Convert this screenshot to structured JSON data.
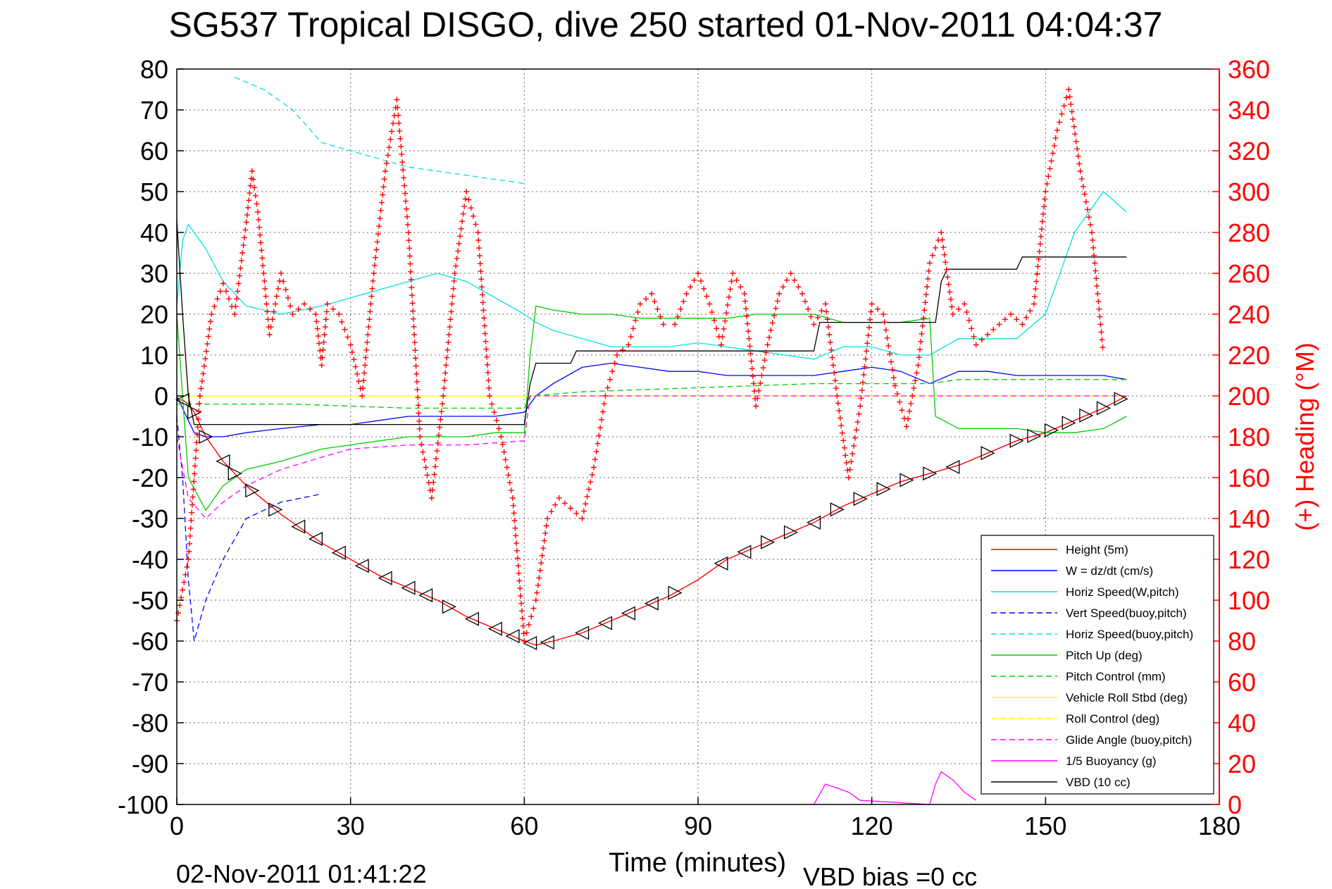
{
  "chart_data": {
    "type": "line",
    "title": "SG537 Tropical DISGO, dive 250 started 01-Nov-2011 04:04:37",
    "xlabel": "Time (minutes)",
    "ylabel": "",
    "y2label": "(+) Heading (°M)",
    "xlim": [
      0,
      180
    ],
    "ylim": [
      -100,
      80
    ],
    "y2lim": [
      0,
      360
    ],
    "x_ticks": [
      "0",
      "30",
      "60",
      "90",
      "120",
      "150",
      "180"
    ],
    "x_tick_values": [
      0,
      30,
      60,
      90,
      120,
      150,
      180
    ],
    "y_ticks": [
      "80",
      "70",
      "60",
      "50",
      "40",
      "30",
      "20",
      "10",
      "0",
      "-10",
      "-20",
      "-30",
      "-40",
      "-50",
      "-60",
      "-70",
      "-80",
      "-90",
      "-100"
    ],
    "y_tick_values": [
      80,
      70,
      60,
      50,
      40,
      30,
      20,
      10,
      0,
      -10,
      -20,
      -30,
      -40,
      -50,
      -60,
      -70,
      -80,
      -90,
      -100
    ],
    "y2_ticks": [
      "360",
      "340",
      "320",
      "300",
      "280",
      "260",
      "240",
      "220",
      "200",
      "180",
      "160",
      "140",
      "120",
      "100",
      "80",
      "60",
      "40",
      "20",
      "0"
    ],
    "y2_tick_values": [
      360,
      340,
      320,
      300,
      280,
      260,
      240,
      220,
      200,
      180,
      160,
      140,
      120,
      100,
      80,
      60,
      40,
      20,
      0
    ],
    "grid": true,
    "legend_position": "bottom-right",
    "footer_left": "02-Nov-2011 01:41:22",
    "footer_right": "VBD bias =0 cc",
    "series": [
      {
        "name": "Height (5m)",
        "color": "#ff0000",
        "style": "solid",
        "x": [
          0,
          1,
          2,
          3,
          5,
          8,
          12,
          18,
          25,
          30,
          35,
          40,
          45,
          50,
          55,
          60,
          62,
          65,
          70,
          75,
          80,
          85,
          90,
          95,
          100,
          105,
          110,
          115,
          120,
          125,
          130,
          135,
          140,
          145,
          150,
          155,
          160,
          164
        ],
        "y": [
          -1,
          -1,
          -2,
          -4,
          -10,
          -16,
          -22,
          -29,
          -36,
          -40,
          -44,
          -47,
          -50,
          -54,
          -57,
          -60,
          -61,
          -60,
          -58,
          -55,
          -52,
          -49,
          -45,
          -40,
          -37,
          -34,
          -31,
          -27,
          -24,
          -21,
          -19,
          -17,
          -14,
          -11,
          -9,
          -6,
          -3,
          0
        ]
      },
      {
        "name": "W = dz/dt (cm/s)",
        "color": "#0000ff",
        "style": "solid",
        "x": [
          0,
          1,
          2,
          3,
          5,
          8,
          12,
          18,
          25,
          30,
          35,
          40,
          45,
          50,
          55,
          60,
          62,
          65,
          70,
          75,
          80,
          85,
          90,
          95,
          100,
          105,
          110,
          115,
          120,
          125,
          130,
          135,
          140,
          145,
          150,
          155,
          160,
          164
        ],
        "y": [
          0,
          -3,
          -6,
          -9,
          -10,
          -10,
          -9,
          -8,
          -7,
          -7,
          -6,
          -5,
          -5,
          -5,
          -5,
          -4,
          0,
          3,
          7,
          8,
          7,
          6,
          6,
          5,
          5,
          5,
          5,
          6,
          7,
          6,
          3,
          6,
          6,
          5,
          5,
          5,
          5,
          4
        ]
      },
      {
        "name": "Horiz Speed(W,pitch)",
        "color": "#00e0e0",
        "style": "solid",
        "x": [
          0,
          1,
          2,
          5,
          8,
          12,
          18,
          25,
          30,
          35,
          40,
          45,
          50,
          55,
          60,
          62,
          65,
          70,
          75,
          80,
          85,
          90,
          95,
          100,
          105,
          110,
          115,
          120,
          125,
          130,
          135,
          140,
          145,
          150,
          155,
          160,
          164
        ],
        "y": [
          22,
          38,
          42,
          36,
          28,
          22,
          20,
          22,
          24,
          26,
          28,
          30,
          28,
          24,
          20,
          18,
          16,
          14,
          12,
          12,
          12,
          13,
          12,
          11,
          10,
          9,
          12,
          12,
          10,
          10,
          14,
          14,
          14,
          20,
          40,
          50,
          45
        ]
      },
      {
        "name": "Vert Speed(buoy,pitch)",
        "color": "#0000ff",
        "style": "dashed",
        "x": [
          0,
          1,
          2,
          3,
          5,
          8,
          12,
          18,
          25
        ],
        "y": [
          -5,
          -20,
          -45,
          -60,
          -50,
          -40,
          -30,
          -26,
          -24
        ]
      },
      {
        "name": "Horiz Speed(buoy,pitch)",
        "color": "#00e0e0",
        "style": "dashed",
        "x": [
          10,
          15,
          20,
          25,
          30,
          35,
          40,
          45,
          50,
          55,
          60
        ],
        "y": [
          78,
          75,
          70,
          62,
          60,
          58,
          56,
          55,
          54,
          53,
          52
        ]
      },
      {
        "name": "Pitch Up (deg)",
        "color": "#00cc00",
        "style": "solid",
        "x": [
          0,
          2,
          5,
          8,
          12,
          18,
          25,
          30,
          35,
          40,
          45,
          50,
          55,
          60,
          61,
          62,
          65,
          70,
          75,
          80,
          85,
          90,
          95,
          100,
          105,
          110,
          115,
          120,
          125,
          130,
          131,
          135,
          140,
          145,
          150,
          155,
          160,
          164
        ],
        "y": [
          20,
          -20,
          -28,
          -22,
          -18,
          -16,
          -13,
          -12,
          -11,
          -10,
          -10,
          -10,
          -9,
          -9,
          10,
          22,
          21,
          20,
          20,
          19,
          19,
          19,
          19,
          20,
          20,
          20,
          18,
          18,
          18,
          19,
          -5,
          -8,
          -8,
          -8,
          -9,
          -9,
          -8,
          -5
        ]
      },
      {
        "name": "Pitch Control (mm)",
        "color": "#00cc00",
        "style": "dashed",
        "x": [
          0,
          2,
          20,
          40,
          60,
          61,
          70,
          90,
          110,
          130,
          135,
          164
        ],
        "y": [
          -2,
          -2,
          -2,
          -3,
          -3,
          0,
          1,
          2,
          3,
          3,
          4,
          4
        ]
      },
      {
        "name": "Vehicle Roll Stbd (deg)",
        "color": "#ffff00",
        "style": "solid",
        "x": [
          0,
          5,
          10,
          20,
          30,
          40,
          50,
          60,
          70,
          80,
          90,
          100,
          110,
          120,
          130,
          140,
          150,
          160,
          164
        ],
        "y": [
          0,
          0,
          0,
          0,
          0,
          0,
          0,
          0,
          0,
          0,
          0,
          0,
          0,
          0,
          0,
          0,
          0,
          0,
          0
        ]
      },
      {
        "name": "Roll Control (deg)",
        "color": "#ffff00",
        "style": "dashed",
        "x": [
          0,
          20,
          40,
          60,
          80,
          100,
          120,
          140,
          164
        ],
        "y": [
          0,
          0,
          0,
          0,
          0,
          0,
          0,
          0,
          0
        ]
      },
      {
        "name": "Glide Angle (buoy,pitch)",
        "color": "#ff00ff",
        "style": "dashed",
        "x": [
          0,
          2,
          5,
          8,
          12,
          18,
          25,
          30,
          40,
          50,
          60,
          61,
          70,
          90,
          110,
          130,
          164
        ],
        "y": [
          -10,
          -25,
          -30,
          -26,
          -22,
          -18,
          -15,
          -13,
          -12,
          -12,
          -11,
          0,
          0,
          0,
          0,
          0,
          0
        ]
      },
      {
        "name": "1/5 Buoyancy (g)",
        "color": "#ff00ff",
        "style": "solid",
        "x": [
          110,
          112,
          114,
          116,
          118,
          130,
          131,
          132,
          134,
          136,
          138
        ],
        "y": [
          -100,
          -95,
          -96,
          -97,
          -99,
          -100,
          -95,
          -92,
          -94,
          -97,
          -99
        ]
      },
      {
        "name": "VBD (10 cc)",
        "color": "#000000",
        "style": "solid",
        "x": [
          0,
          1,
          2,
          3,
          60,
          61,
          62,
          68,
          69,
          110,
          111,
          131,
          132,
          133,
          145,
          146,
          164
        ],
        "y": [
          43,
          20,
          0,
          -7,
          -7,
          3,
          8,
          8,
          11,
          11,
          18,
          18,
          28,
          31,
          31,
          34,
          34
        ]
      }
    ],
    "heading": {
      "name": "(+) Heading",
      "color": "#ff0000",
      "marker": "+",
      "x": [
        0,
        2,
        4,
        6,
        8,
        10,
        12,
        13,
        14,
        16,
        18,
        20,
        22,
        24,
        25,
        26,
        28,
        30,
        32,
        34,
        36,
        38,
        40,
        42,
        44,
        46,
        48,
        50,
        52,
        54,
        56,
        58,
        60,
        62,
        64,
        66,
        68,
        70,
        72,
        74,
        76,
        78,
        80,
        82,
        84,
        86,
        88,
        90,
        92,
        94,
        96,
        98,
        100,
        102,
        104,
        106,
        108,
        110,
        112,
        114,
        116,
        118,
        120,
        122,
        124,
        126,
        128,
        130,
        132,
        134,
        136,
        138,
        140,
        142,
        144,
        146,
        148,
        150,
        152,
        154,
        156,
        158,
        160
      ],
      "y": [
        90,
        120,
        200,
        240,
        255,
        240,
        285,
        310,
        290,
        230,
        260,
        240,
        245,
        240,
        215,
        245,
        240,
        225,
        200,
        260,
        310,
        345,
        280,
        180,
        150,
        200,
        260,
        300,
        280,
        200,
        180,
        150,
        80,
        100,
        140,
        150,
        145,
        140,
        165,
        200,
        220,
        225,
        245,
        250,
        235,
        235,
        250,
        260,
        245,
        225,
        260,
        250,
        195,
        225,
        250,
        260,
        250,
        235,
        245,
        200,
        160,
        195,
        245,
        240,
        205,
        185,
        215,
        265,
        280,
        240,
        245,
        225,
        230,
        235,
        240,
        235,
        245,
        300,
        330,
        350,
        310,
        280,
        220
      ]
    },
    "height_markers": {
      "x": [
        1,
        3,
        5,
        8,
        10,
        13,
        17,
        21,
        24,
        28,
        32,
        36,
        40,
        43,
        47,
        51,
        55,
        58,
        61,
        64,
        70,
        74,
        78,
        82,
        86,
        94,
        98,
        102,
        106,
        110,
        114,
        118,
        122,
        126,
        130,
        134,
        140,
        145,
        148,
        151,
        154,
        157,
        160,
        163
      ],
      "dir": [
        "L",
        "R",
        "R",
        "L",
        "R",
        "R",
        "R",
        "L",
        "L",
        "L",
        "L",
        "L",
        "L",
        "L",
        "R",
        "L",
        "L",
        "L",
        "L",
        "L",
        "L",
        "L",
        "L",
        "L",
        "R",
        "L",
        "L",
        "R",
        "R",
        "L",
        "R",
        "R",
        "R",
        "R",
        "R",
        "L",
        "R",
        "R",
        "R",
        "R",
        "R",
        "R",
        "R",
        "R"
      ]
    }
  }
}
